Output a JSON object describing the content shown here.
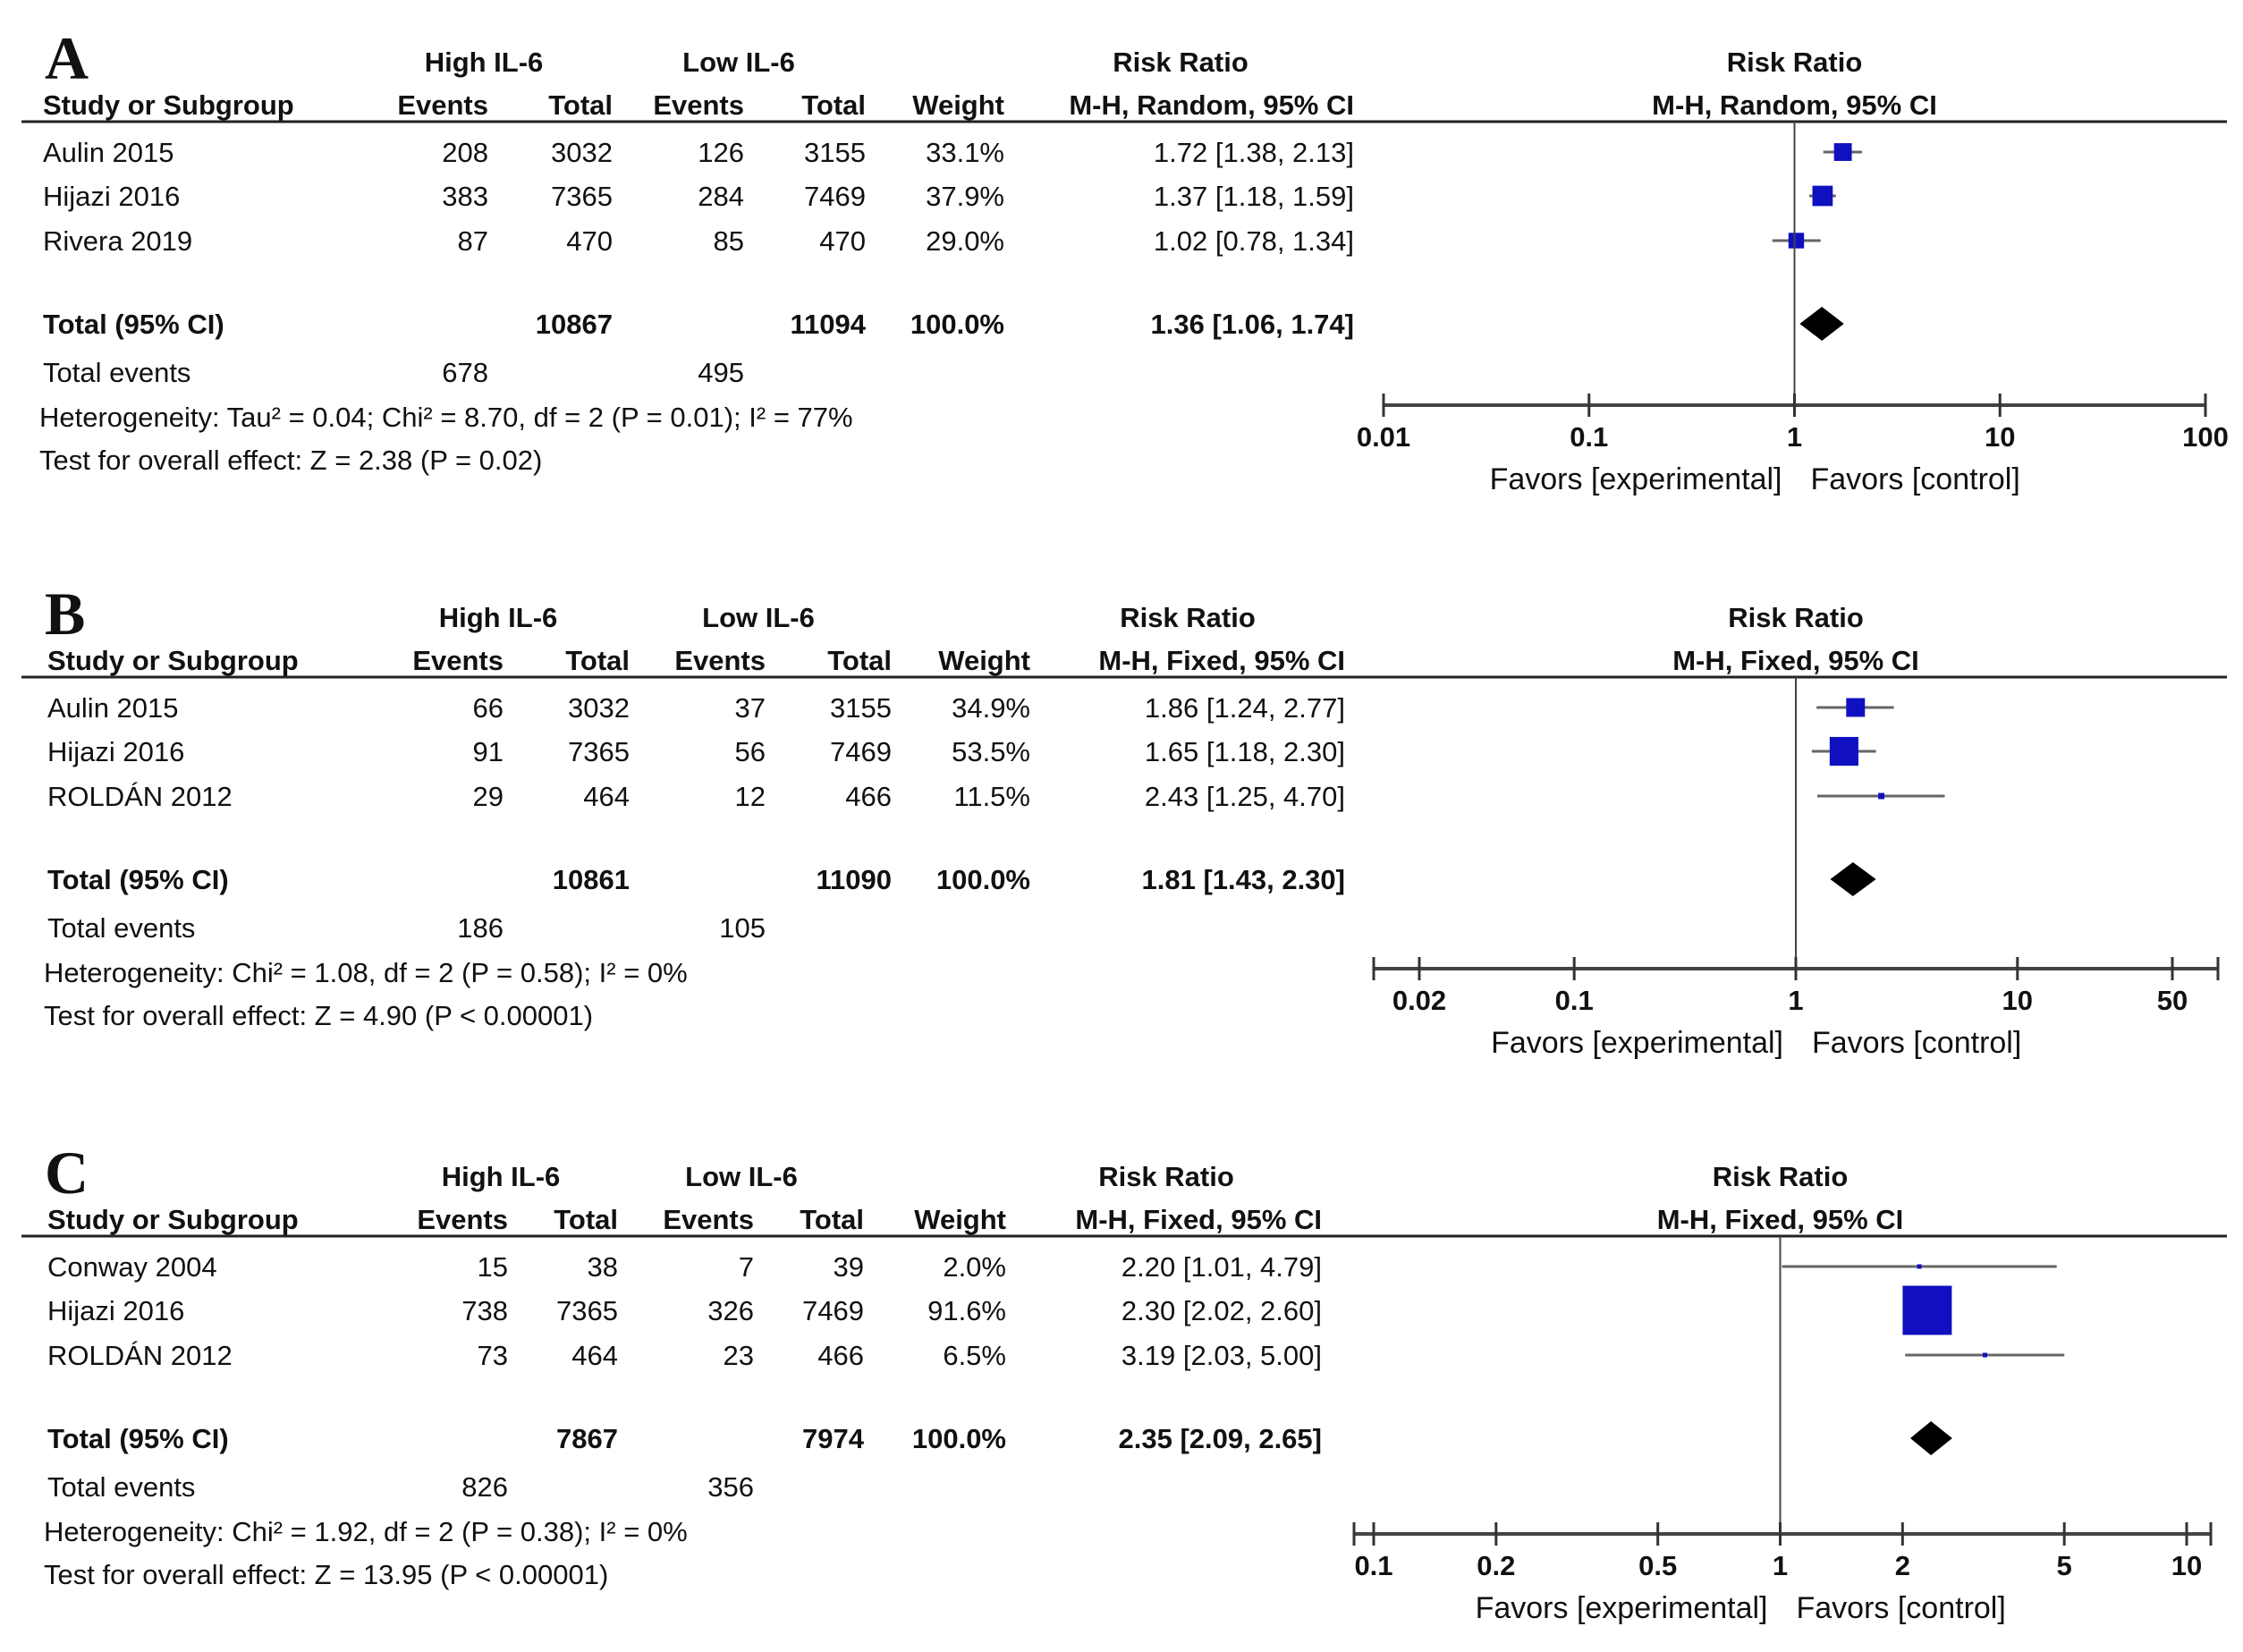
{
  "chart_data": [
    {
      "type": "forest",
      "label": "A",
      "group1": "High IL-6",
      "group2": "Low IL-6",
      "rr_header": "Risk Ratio",
      "rr_method": "M-H, Random, 95% CI",
      "col_headers": [
        "Study or Subgroup",
        "Events",
        "Total",
        "Events",
        "Total",
        "Weight",
        "M-H, Random, 95% CI"
      ],
      "studies": [
        {
          "name": "Aulin 2015",
          "e1": "208",
          "t1": "3032",
          "e2": "126",
          "t2": "3155",
          "weight": "33.1%",
          "rr_text": "1.72 [1.38, 2.13]",
          "rr": 1.72,
          "lo": 1.38,
          "hi": 2.13,
          "w": 33.1
        },
        {
          "name": "Hijazi 2016",
          "e1": "383",
          "t1": "7365",
          "e2": "284",
          "t2": "7469",
          "weight": "37.9%",
          "rr_text": "1.37 [1.18, 1.59]",
          "rr": 1.37,
          "lo": 1.18,
          "hi": 1.59,
          "w": 37.9
        },
        {
          "name": "Rivera 2019",
          "e1": "87",
          "t1": "470",
          "e2": "85",
          "t2": "470",
          "weight": "29.0%",
          "rr_text": "1.02 [0.78, 1.34]",
          "rr": 1.02,
          "lo": 0.78,
          "hi": 1.34,
          "w": 29.0
        }
      ],
      "total": {
        "label": "Total (95% CI)",
        "t1": "10867",
        "t2": "11094",
        "weight": "100.0%",
        "rr_text": "1.36 [1.06, 1.74]",
        "rr": 1.36,
        "lo": 1.06,
        "hi": 1.74
      },
      "total_events": {
        "label": "Total events",
        "e1": "678",
        "e2": "495"
      },
      "heterogeneity": "Heterogeneity: Tau² = 0.04; Chi² = 8.70, df = 2 (P = 0.01); I² = 77%",
      "overall_effect": "Test for overall effect: Z = 2.38 (P = 0.02)",
      "plot": {
        "title": "Risk Ratio",
        "method": "M-H, Random, 95% CI",
        "scale": "log",
        "xlim": [
          0.01,
          100
        ],
        "ticks": [
          0.01,
          0.1,
          1,
          10,
          100
        ],
        "tick_labels": [
          "0.01",
          "0.1",
          "1",
          "10",
          "100"
        ],
        "favors_left": "Favors [experimental]",
        "favors_right": "Favors [control]"
      }
    },
    {
      "type": "forest",
      "label": "B",
      "group1": "High IL-6",
      "group2": "Low IL-6",
      "rr_header": "Risk Ratio",
      "rr_method": "M-H, Fixed, 95% CI",
      "col_headers": [
        "Study or Subgroup",
        "Events",
        "Total",
        "Events",
        "Total",
        "Weight",
        "M-H, Fixed, 95% CI"
      ],
      "studies": [
        {
          "name": "Aulin 2015",
          "e1": "66",
          "t1": "3032",
          "e2": "37",
          "t2": "3155",
          "weight": "34.9%",
          "rr_text": "1.86 [1.24, 2.77]",
          "rr": 1.86,
          "lo": 1.24,
          "hi": 2.77,
          "w": 34.9
        },
        {
          "name": "Hijazi 2016",
          "e1": "91",
          "t1": "7365",
          "e2": "56",
          "t2": "7469",
          "weight": "53.5%",
          "rr_text": "1.65 [1.18, 2.30]",
          "rr": 1.65,
          "lo": 1.18,
          "hi": 2.3,
          "w": 53.5
        },
        {
          "name": "ROLDÁN 2012",
          "e1": "29",
          "t1": "464",
          "e2": "12",
          "t2": "466",
          "weight": "11.5%",
          "rr_text": "2.43 [1.25, 4.70]",
          "rr": 2.43,
          "lo": 1.25,
          "hi": 4.7,
          "w": 11.5
        }
      ],
      "total": {
        "label": "Total (95% CI)",
        "t1": "10861",
        "t2": "11090",
        "weight": "100.0%",
        "rr_text": "1.81 [1.43, 2.30]",
        "rr": 1.81,
        "lo": 1.43,
        "hi": 2.3
      },
      "total_events": {
        "label": "Total events",
        "e1": "186",
        "e2": "105"
      },
      "heterogeneity": "Heterogeneity: Chi² = 1.08, df = 2 (P = 0.58); I² = 0%",
      "overall_effect": "Test for overall effect: Z = 4.90 (P < 0.00001)",
      "plot": {
        "title": "Risk Ratio",
        "method": "M-H, Fixed, 95% CI",
        "scale": "log",
        "xlim": [
          0.02,
          50
        ],
        "ticks": [
          0.02,
          0.1,
          1,
          10,
          50
        ],
        "tick_labels": [
          "0.02",
          "0.1",
          "1",
          "10",
          "50"
        ],
        "favors_left": "Favors [experimental]",
        "favors_right": "Favors [control]"
      }
    },
    {
      "type": "forest",
      "label": "C",
      "group1": "High IL-6",
      "group2": "Low IL-6",
      "rr_header": "Risk Ratio",
      "rr_method": "M-H, Fixed, 95% CI",
      "col_headers": [
        "Study or Subgroup",
        "Events",
        "Total",
        "Events",
        "Total",
        "Weight",
        "M-H, Fixed, 95% CI"
      ],
      "studies": [
        {
          "name": "Conway 2004",
          "e1": "15",
          "t1": "38",
          "e2": "7",
          "t2": "39",
          "weight": "2.0%",
          "rr_text": "2.20 [1.01, 4.79]",
          "rr": 2.2,
          "lo": 1.01,
          "hi": 4.79,
          "w": 2.0
        },
        {
          "name": "Hijazi 2016",
          "e1": "738",
          "t1": "7365",
          "e2": "326",
          "t2": "7469",
          "weight": "91.6%",
          "rr_text": "2.30 [2.02, 2.60]",
          "rr": 2.3,
          "lo": 2.02,
          "hi": 2.6,
          "w": 91.6
        },
        {
          "name": "ROLDÁN 2012",
          "e1": "73",
          "t1": "464",
          "e2": "23",
          "t2": "466",
          "weight": "6.5%",
          "rr_text": "3.19 [2.03, 5.00]",
          "rr": 3.19,
          "lo": 2.03,
          "hi": 5.0,
          "w": 6.5
        }
      ],
      "total": {
        "label": "Total (95% CI)",
        "t1": "7867",
        "t2": "7974",
        "weight": "100.0%",
        "rr_text": "2.35 [2.09, 2.65]",
        "rr": 2.35,
        "lo": 2.09,
        "hi": 2.65
      },
      "total_events": {
        "label": "Total events",
        "e1": "826",
        "e2": "356"
      },
      "heterogeneity": "Heterogeneity: Chi² = 1.92, df = 2 (P = 0.38); I² = 0%",
      "overall_effect": "Test for overall effect: Z = 13.95 (P < 0.00001)",
      "plot": {
        "title": "Risk Ratio",
        "method": "M-H, Fixed, 95% CI",
        "scale": "log",
        "xlim": [
          0.1,
          10
        ],
        "ticks": [
          0.1,
          0.2,
          0.5,
          1,
          2,
          5,
          10
        ],
        "tick_labels": [
          "0.1",
          "0.2",
          "0.5",
          "1",
          "2",
          "5",
          "10"
        ],
        "favors_left": "Favors [experimental]",
        "favors_right": "Favors [control]"
      }
    }
  ]
}
